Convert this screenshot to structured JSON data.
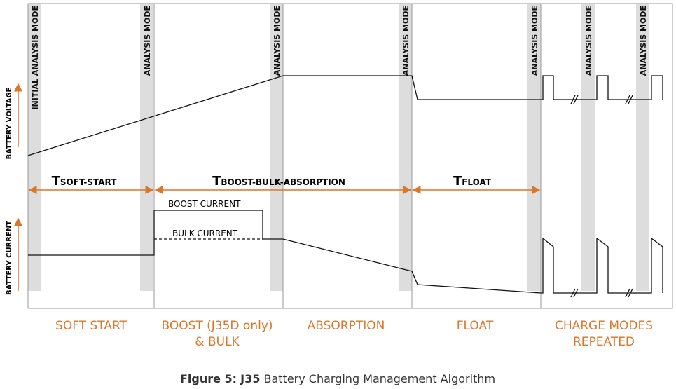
{
  "mode_labels": [
    "INITIAL ANALYSIS MODE",
    "ANALYSIS MODE",
    "ANALYSIS MODE",
    "ANALYSIS MODE",
    "ANALYSIS MODE",
    "ANALYSIS MODE",
    "ANALYSIS MODE"
  ],
  "axes": {
    "voltage": "BATTERY VOLTAGE",
    "current": "BATTERY CURRENT"
  },
  "durations": [
    {
      "symbol": "T",
      "subscript": "SOFT-START"
    },
    {
      "symbol": "T",
      "subscript": "BOOST-BULK-ABSORPTION"
    },
    {
      "symbol": "T",
      "subscript": "FLOAT"
    }
  ],
  "annotations": {
    "boost": "BOOST CURRENT",
    "bulk": "BULK CURRENT"
  },
  "phases": [
    [
      "SOFT START"
    ],
    [
      "BOOST (J35D only)",
      "& BULK"
    ],
    [
      "ABSORPTION"
    ],
    [
      "FLOAT"
    ],
    [
      "CHARGE MODES",
      "REPEATED"
    ]
  ],
  "caption": {
    "label": "Figure 5:",
    "product": "J35",
    "text": "Battery Charging Management Algorithm"
  }
}
